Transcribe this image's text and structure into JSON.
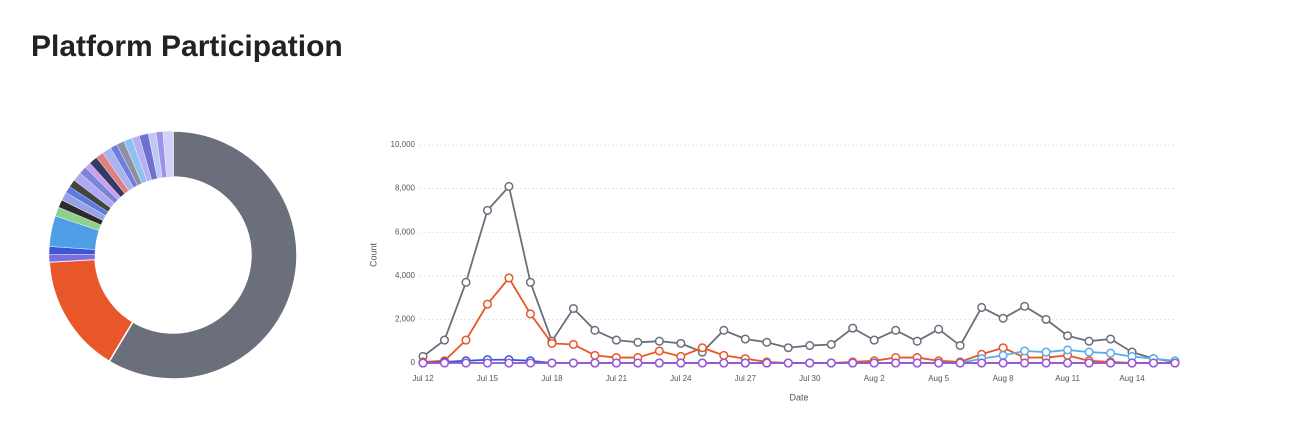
{
  "title": "Platform Participation",
  "chart_data": [
    {
      "type": "pie",
      "values": [
        58.6,
        15.5,
        1,
        1,
        4,
        1.2,
        1,
        1.1,
        0.9,
        1,
        1.2,
        1,
        0.8,
        1.1,
        1,
        1.2,
        0.9,
        1,
        1.1,
        1,
        1.2,
        1,
        0.9,
        1.3
      ],
      "colors": [
        "#6b6f7b",
        "#e8572a",
        "#7d6ee0",
        "#3a57d6",
        "#4f9fe8",
        "#8fd18a",
        "#2b2b2b",
        "#9aa0e8",
        "#5a7be0",
        "#444444",
        "#b0a8f0",
        "#7c84d8",
        "#c9a0f0",
        "#333a66",
        "#e08080",
        "#a9b4ee",
        "#6f7de0",
        "#8f8f9f",
        "#90c0f0",
        "#b8b0f5",
        "#7070d0",
        "#c0c8f5",
        "#9f90e8",
        "#d0d0f8"
      ]
    },
    {
      "type": "line",
      "x_label": "Date",
      "y_label": "Count",
      "categories": [
        "Jul 12",
        null,
        null,
        "Jul 15",
        null,
        null,
        "Jul 18",
        null,
        null,
        "Jul 21",
        null,
        null,
        "Jul 24",
        null,
        null,
        "Jul 27",
        null,
        null,
        "Jul 30",
        null,
        null,
        "Aug 2",
        null,
        null,
        "Aug 5",
        null,
        null,
        "Aug 8",
        null,
        null,
        "Aug 11",
        null,
        null,
        "Aug 14",
        null,
        null
      ],
      "ylim": [
        0,
        10000
      ],
      "yticks": [
        0,
        {
          "value": 2000,
          "label": "2,000"
        },
        {
          "value": 4000,
          "label": "4,000"
        },
        {
          "value": 6000,
          "label": "6,000"
        },
        {
          "value": 8000,
          "label": "8,000"
        },
        {
          "value": 10000,
          "label": "10,000"
        }
      ],
      "grid": true,
      "series": [
        {
          "color": "#6b6f7b",
          "values": [
            300,
            1050,
            3700,
            7000,
            8100,
            3700,
            1000,
            2500,
            1500,
            1050,
            950,
            1000,
            900,
            500,
            1500,
            1100,
            950,
            700,
            800,
            850,
            1600,
            1050,
            1500,
            1000,
            1550,
            800,
            2550,
            2050,
            2600,
            2000,
            1250,
            1000,
            1100,
            500,
            200,
            50
          ]
        },
        {
          "color": "#e8572a",
          "values": [
            50,
            100,
            1050,
            2700,
            3900,
            2250,
            900,
            850,
            350,
            250,
            250,
            550,
            300,
            700,
            350,
            200,
            50,
            0,
            0,
            0,
            50,
            100,
            250,
            250,
            100,
            50,
            400,
            700,
            250,
            250,
            350,
            100,
            50,
            0,
            0,
            0
          ]
        },
        {
          "color": "#5aaee8",
          "values": [
            0,
            0,
            0,
            0,
            0,
            0,
            0,
            0,
            0,
            0,
            0,
            0,
            0,
            0,
            0,
            0,
            0,
            0,
            0,
            0,
            0,
            0,
            0,
            0,
            0,
            0,
            200,
            350,
            550,
            500,
            600,
            500,
            450,
            300,
            200,
            100
          ]
        },
        {
          "color": "#3a57d6",
          "values": [
            0,
            50,
            100,
            150,
            150,
            100,
            0,
            0,
            0,
            0,
            0,
            0,
            0,
            0,
            0,
            0,
            0,
            0,
            0,
            0,
            0,
            0,
            0,
            0,
            0,
            0,
            0,
            0,
            0,
            0,
            0,
            0,
            0,
            0,
            0,
            0
          ]
        },
        {
          "color": "#9b59d6",
          "values": [
            0,
            0,
            0,
            0,
            0,
            0,
            0,
            0,
            0,
            0,
            0,
            0,
            0,
            0,
            0,
            0,
            0,
            0,
            0,
            0,
            0,
            0,
            0,
            0,
            0,
            0,
            0,
            0,
            0,
            0,
            0,
            0,
            0,
            0,
            0,
            0
          ]
        }
      ]
    }
  ]
}
